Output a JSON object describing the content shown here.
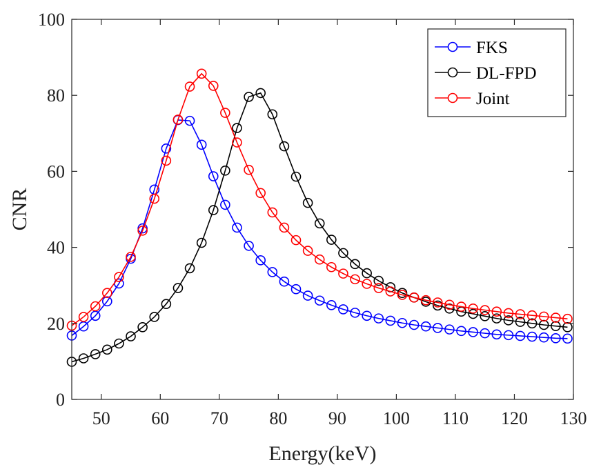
{
  "chart_data": {
    "type": "line",
    "xlabel": "Energy(keV)",
    "ylabel": "CNR",
    "xlim": [
      45,
      130
    ],
    "ylim": [
      0,
      100
    ],
    "xticks": [
      50,
      60,
      70,
      80,
      90,
      100,
      110,
      120,
      130
    ],
    "yticks": [
      0,
      20,
      40,
      60,
      80,
      100
    ],
    "legend_position": "top-right",
    "x": [
      45,
      47,
      49,
      51,
      53,
      55,
      57,
      59,
      61,
      63,
      65,
      67,
      69,
      71,
      73,
      75,
      77,
      79,
      81,
      83,
      85,
      87,
      89,
      91,
      93,
      95,
      97,
      99,
      101,
      103,
      105,
      107,
      109,
      111,
      113,
      115,
      117,
      119,
      121,
      123,
      125,
      127,
      129
    ],
    "series": [
      {
        "name": "FKS",
        "color": "#0000ff",
        "x": [
          45,
          47,
          49,
          51,
          53,
          55,
          57,
          59,
          61,
          63,
          65,
          67,
          69,
          71,
          73,
          75,
          77,
          79,
          81,
          83,
          85,
          87,
          89,
          91,
          93,
          95,
          97,
          99,
          101,
          103,
          105,
          107,
          109,
          111,
          113,
          115,
          117,
          119,
          121,
          123,
          125,
          127,
          129
        ],
        "values": [
          16.8,
          19.2,
          22.0,
          25.8,
          30.5,
          37.0,
          45.0,
          55.2,
          66.0,
          73.5,
          73.3,
          67.0,
          58.7,
          51.2,
          45.2,
          40.4,
          36.6,
          33.5,
          31.0,
          29.0,
          27.3,
          26.0,
          24.8,
          23.7,
          22.8,
          22.0,
          21.3,
          20.7,
          20.1,
          19.6,
          19.2,
          18.8,
          18.4,
          18.0,
          17.7,
          17.4,
          17.1,
          16.9,
          16.7,
          16.5,
          16.3,
          16.1,
          16.0
        ]
      },
      {
        "name": "DL-FPD",
        "color": "#000000",
        "x": [
          45,
          47,
          49,
          51,
          53,
          55,
          57,
          59,
          61,
          63,
          65,
          67,
          69,
          71,
          73,
          75,
          77,
          79,
          81,
          83,
          85,
          87,
          89,
          91,
          93,
          95,
          97,
          99,
          101,
          103,
          105,
          107,
          109,
          111,
          113,
          115,
          117,
          119,
          121,
          123,
          125,
          127,
          129
        ],
        "values": [
          9.9,
          10.8,
          11.9,
          13.1,
          14.7,
          16.6,
          19.0,
          21.7,
          25.1,
          29.3,
          34.5,
          41.2,
          49.8,
          60.2,
          71.4,
          79.6,
          80.6,
          75.0,
          66.6,
          58.6,
          51.7,
          46.3,
          42.0,
          38.5,
          35.6,
          33.2,
          31.2,
          29.5,
          28.0,
          26.8,
          25.7,
          24.7,
          23.9,
          23.1,
          22.5,
          21.9,
          21.3,
          20.8,
          20.4,
          20.0,
          19.6,
          19.3,
          19.0
        ]
      },
      {
        "name": "Joint",
        "color": "#ff0000",
        "x": [
          45,
          47,
          49,
          51,
          53,
          55,
          57,
          59,
          61,
          63,
          65,
          67,
          69,
          71,
          73,
          75,
          77,
          79,
          81,
          83,
          85,
          87,
          89,
          91,
          93,
          95,
          97,
          99,
          101,
          103,
          105,
          107,
          109,
          111,
          113,
          115,
          117,
          119,
          121,
          123,
          125,
          127,
          129
        ],
        "values": [
          19.4,
          21.7,
          24.5,
          28.0,
          32.2,
          37.5,
          44.4,
          52.8,
          62.8,
          73.6,
          82.3,
          85.7,
          82.5,
          75.4,
          67.6,
          60.4,
          54.3,
          49.2,
          45.2,
          41.9,
          39.1,
          36.8,
          34.8,
          33.1,
          31.6,
          30.4,
          29.3,
          28.4,
          27.5,
          26.8,
          26.1,
          25.5,
          24.9,
          24.4,
          23.9,
          23.5,
          23.1,
          22.7,
          22.4,
          22.1,
          21.8,
          21.5,
          21.2
        ]
      }
    ]
  }
}
